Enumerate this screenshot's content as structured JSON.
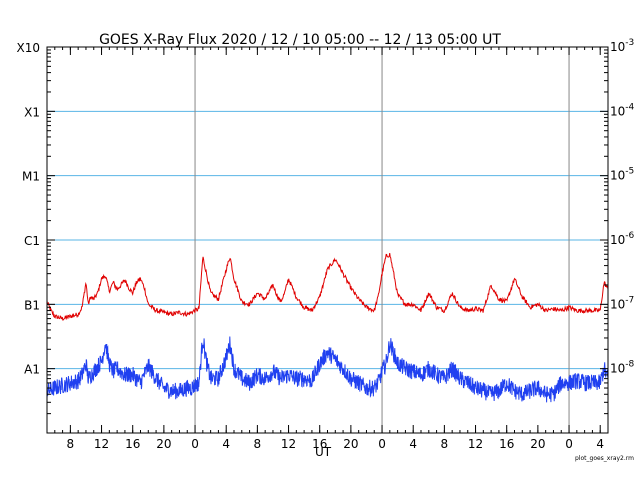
{
  "chart_data": {
    "type": "line",
    "title": "GOES X-Ray Flux   2020 / 12 / 10   05:00 -- 12 / 13   05:00   UT",
    "xlabel": "UT",
    "ylabel": "",
    "y_scale": "log",
    "ylim": [
      1e-09,
      0.001
    ],
    "x_unit": "hours since 2020-12-10 05:00 UT",
    "xlim": [
      0,
      72
    ],
    "x_ticks": [
      {
        "t": 3,
        "label": "8"
      },
      {
        "t": 7,
        "label": "12"
      },
      {
        "t": 11,
        "label": "16"
      },
      {
        "t": 15,
        "label": "20"
      },
      {
        "t": 19,
        "label": "0"
      },
      {
        "t": 23,
        "label": "4"
      },
      {
        "t": 27,
        "label": "8"
      },
      {
        "t": 31,
        "label": "12"
      },
      {
        "t": 35,
        "label": "16"
      },
      {
        "t": 39,
        "label": "20"
      },
      {
        "t": 43,
        "label": "0"
      },
      {
        "t": 47,
        "label": "4"
      },
      {
        "t": 51,
        "label": "8"
      },
      {
        "t": 55,
        "label": "12"
      },
      {
        "t": 59,
        "label": "16"
      },
      {
        "t": 63,
        "label": "20"
      },
      {
        "t": 67,
        "label": "0"
      },
      {
        "t": 71,
        "label": "4"
      }
    ],
    "day_boundaries": [
      19,
      43,
      67
    ],
    "left_axis_classes": [
      {
        "label": "X10",
        "value": 0.001
      },
      {
        "label": "X1",
        "value": 0.0001
      },
      {
        "label": "M1",
        "value": 1e-05
      },
      {
        "label": "C1",
        "value": 1e-06
      },
      {
        "label": "B1",
        "value": 1e-07
      },
      {
        "label": "A1",
        "value": 1e-08
      }
    ],
    "right_axis_labels": [
      {
        "label": "10",
        "exp": "-3",
        "value": 0.001
      },
      {
        "label": "10",
        "exp": "-4",
        "value": 0.0001
      },
      {
        "label": "10",
        "exp": "-5",
        "value": 1e-05
      },
      {
        "label": "10",
        "exp": "-6",
        "value": 1e-06
      },
      {
        "label": "10",
        "exp": "-7",
        "value": 1e-07
      },
      {
        "label": "10",
        "exp": "-8",
        "value": 1e-08
      }
    ],
    "grid_lines": [
      0.0001,
      1e-05,
      1e-06,
      1e-07,
      1e-08
    ],
    "colors": {
      "long_channel": "#e00000",
      "short_channel": "#2040f0",
      "grid": "#5ab4e6",
      "day_line": "#888888"
    },
    "series": [
      {
        "color": "#e00000",
        "x": [
          0,
          0.5,
          1,
          2,
          3,
          4,
          4.5,
          5,
          5.3,
          5.6,
          6,
          6.5,
          7,
          7.5,
          8,
          8.5,
          9,
          9.5,
          10,
          10.5,
          11,
          11.5,
          12,
          12.5,
          13,
          14,
          15,
          16,
          17,
          18,
          18.5,
          19,
          19.5,
          20,
          21,
          22,
          23,
          23.5,
          24,
          25,
          26,
          27,
          28,
          29,
          29.5,
          30,
          30.5,
          31,
          32,
          33,
          34,
          35,
          36,
          37,
          37.5,
          38,
          39,
          40,
          41,
          42,
          42.5,
          43,
          43.5,
          44,
          44.5,
          45,
          46,
          47,
          48,
          49,
          50,
          51,
          52,
          53,
          54,
          55,
          56,
          57,
          58,
          59,
          60,
          61,
          62,
          63,
          64,
          65,
          66,
          67,
          68,
          69,
          70,
          71,
          71.5,
          72
        ],
        "y": [
          1.1e-07,
          8e-08,
          6.5e-08,
          6e-08,
          6.5e-08,
          7e-08,
          9e-08,
          2.2e-07,
          1e-07,
          1.3e-07,
          1.2e-07,
          1.5e-07,
          2.5e-07,
          2.8e-07,
          1.6e-07,
          2.2e-07,
          1.7e-07,
          2e-07,
          2.4e-07,
          1.8e-07,
          1.5e-07,
          2.2e-07,
          2.5e-07,
          1.8e-07,
          1e-07,
          8e-08,
          7.5e-08,
          7e-08,
          7.5e-08,
          7e-08,
          7.5e-08,
          8e-08,
          8.5e-08,
          5.5e-07,
          1.5e-07,
          1.2e-07,
          3.5e-07,
          5.5e-07,
          2.5e-07,
          1.1e-07,
          1e-07,
          1.5e-07,
          1.2e-07,
          2e-07,
          1.4e-07,
          1.1e-07,
          1.5e-07,
          2.5e-07,
          1.3e-07,
          9e-08,
          8e-08,
          1.3e-07,
          3.5e-07,
          5e-07,
          4e-07,
          3e-07,
          1.8e-07,
          1.2e-07,
          9e-08,
          8e-08,
          1.3e-07,
          3e-07,
          5.5e-07,
          6e-07,
          3e-07,
          1.4e-07,
          1e-07,
          1e-07,
          8e-08,
          1.5e-07,
          9e-08,
          8e-08,
          1.5e-07,
          9e-08,
          8e-08,
          8.5e-08,
          8e-08,
          2e-07,
          1.2e-07,
          1.1e-07,
          2.5e-07,
          1.3e-07,
          9e-08,
          1e-07,
          8e-08,
          8.5e-08,
          8e-08,
          9e-08,
          8e-08,
          8e-08,
          8e-08,
          8e-08,
          2.2e-07,
          1.7e-07
        ]
      },
      {
        "color": "#2040f0",
        "x": [
          0,
          1,
          2,
          3,
          4,
          4.5,
          5,
          5.3,
          6,
          7,
          7.5,
          8,
          8.5,
          9,
          10,
          11,
          12,
          13,
          14,
          15,
          16,
          17,
          18,
          18.5,
          19,
          19.5,
          20,
          20.5,
          21,
          22,
          23,
          23.5,
          24,
          25,
          26,
          27,
          28,
          29,
          30,
          31,
          32,
          33,
          34,
          35,
          36,
          37,
          38,
          39,
          40,
          41,
          42,
          42.5,
          43,
          43.5,
          44,
          45,
          46,
          47,
          48,
          49,
          50,
          51,
          52,
          53,
          54,
          55,
          56,
          57,
          58,
          59,
          60,
          61,
          62,
          63,
          64,
          65,
          66,
          67,
          68,
          69,
          70,
          71,
          71.5,
          72
        ],
        "y": [
          4.5e-09,
          5e-09,
          5.5e-09,
          6e-09,
          6.5e-09,
          8e-09,
          1.2e-08,
          7e-09,
          9e-09,
          1.3e-08,
          2.5e-08,
          1.2e-08,
          9e-09,
          1e-08,
          8e-09,
          8e-09,
          6e-09,
          1.1e-08,
          7e-09,
          5e-09,
          4.5e-09,
          4.5e-09,
          5e-09,
          5e-09,
          5.5e-09,
          6e-09,
          3e-08,
          1.2e-08,
          7e-09,
          7e-09,
          1.5e-08,
          2.5e-08,
          1e-08,
          7e-09,
          6e-09,
          8e-09,
          7e-09,
          9e-09,
          7e-09,
          8e-09,
          7e-09,
          7e-09,
          6.5e-09,
          1.2e-08,
          1.8e-08,
          1.4e-08,
          1e-08,
          7e-09,
          6e-09,
          5e-09,
          5e-09,
          6e-09,
          9e-09,
          1.2e-08,
          2.5e-08,
          1.2e-08,
          1e-08,
          9e-09,
          8e-09,
          1e-08,
          8e-09,
          7e-09,
          1e-08,
          7e-09,
          6e-09,
          5e-09,
          4.5e-09,
          4e-09,
          4.5e-09,
          6e-09,
          4.5e-09,
          4e-09,
          4.5e-09,
          5e-09,
          4e-09,
          4e-09,
          6e-09,
          6e-09,
          6.5e-09,
          6e-09,
          6e-09,
          6e-09,
          1e-08,
          7e-09
        ]
      }
    ]
  },
  "footer_note": "plot_goes_xray2.rm"
}
